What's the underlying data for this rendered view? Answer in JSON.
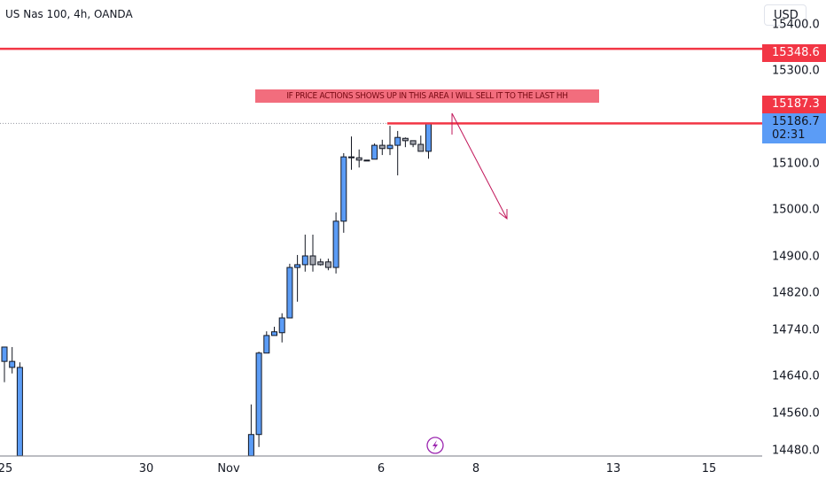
{
  "header": {
    "symbol_title": "US Nas 100, 4h, OANDA",
    "currency_button": "USD"
  },
  "colors": {
    "bull": "#5b9cf6",
    "bear": "#a3a6af",
    "level_line": "#f23645",
    "arrow": "#c2185b",
    "lightning": "#9c27b0"
  },
  "price_axis": {
    "ticks": [
      "15400.0",
      "15300.0",
      "15100.0",
      "15000.0",
      "14900.0",
      "14820.0",
      "14740.0",
      "14640.0",
      "14560.0",
      "14480.0"
    ],
    "tick_values": [
      15400,
      15300,
      15100,
      15000,
      14900,
      14820,
      14740,
      14640,
      14560,
      14480
    ],
    "level_tag_high": "15348.6",
    "level_tag_low": "15187.3",
    "last_price": "15186.7",
    "countdown": "02:31"
  },
  "time_axis": {
    "labels": [
      "25",
      "30",
      "Nov",
      "6",
      "8",
      "13",
      "15"
    ]
  },
  "annotation": {
    "text": "IF PRICE ACTIONS SHOWS UP IN THIS AREA I WILL SELL IT TO THE LAST HH"
  },
  "levels": [
    15348.6,
    15187.3
  ],
  "chart_data": {
    "type": "candlestick",
    "columns": [
      "bar",
      "open",
      "high",
      "low",
      "close"
    ],
    "candles": [
      [
        0,
        14673,
        14704,
        14628,
        14704
      ],
      [
        1,
        14660,
        14704,
        14647,
        14673
      ],
      [
        2,
        14469,
        14671,
        14469,
        14660
      ],
      [
        32,
        14469,
        14580,
        14469,
        14515
      ],
      [
        33,
        14515,
        14694,
        14488,
        14691
      ],
      [
        34,
        14691,
        14738,
        14691,
        14729
      ],
      [
        35,
        14729,
        14748,
        14729,
        14737
      ],
      [
        36,
        14735,
        14777,
        14714,
        14767
      ],
      [
        37,
        14767,
        14884,
        14767,
        14876
      ],
      [
        38,
        14876,
        14903,
        14802,
        14882
      ],
      [
        39,
        14882,
        14947,
        14867,
        14901
      ],
      [
        40,
        14901,
        14947,
        14867,
        14882
      ],
      [
        41,
        14888,
        14895,
        14880,
        14882
      ],
      [
        42,
        14888,
        14895,
        14870,
        14876
      ],
      [
        43,
        14876,
        14995,
        14863,
        14976
      ],
      [
        44,
        14976,
        15123,
        14951,
        15115
      ],
      [
        45,
        15115,
        15159,
        15087,
        15113
      ],
      [
        46,
        15113,
        15131,
        15092,
        15108
      ],
      [
        47,
        15108,
        15104,
        15104,
        15108
      ],
      [
        48,
        15110,
        15144,
        15110,
        15140
      ],
      [
        49,
        15140,
        15152,
        15119,
        15133
      ],
      [
        50,
        15133,
        15182,
        15119,
        15140
      ],
      [
        51,
        15140,
        15171,
        15075,
        15157
      ],
      [
        52,
        15155,
        15157,
        15136,
        15150
      ],
      [
        53,
        15150,
        15150,
        15136,
        15142
      ],
      [
        54,
        15142,
        15161,
        15127,
        15127
      ],
      [
        55,
        15127,
        15186.7,
        15111,
        15186.7
      ]
    ]
  }
}
